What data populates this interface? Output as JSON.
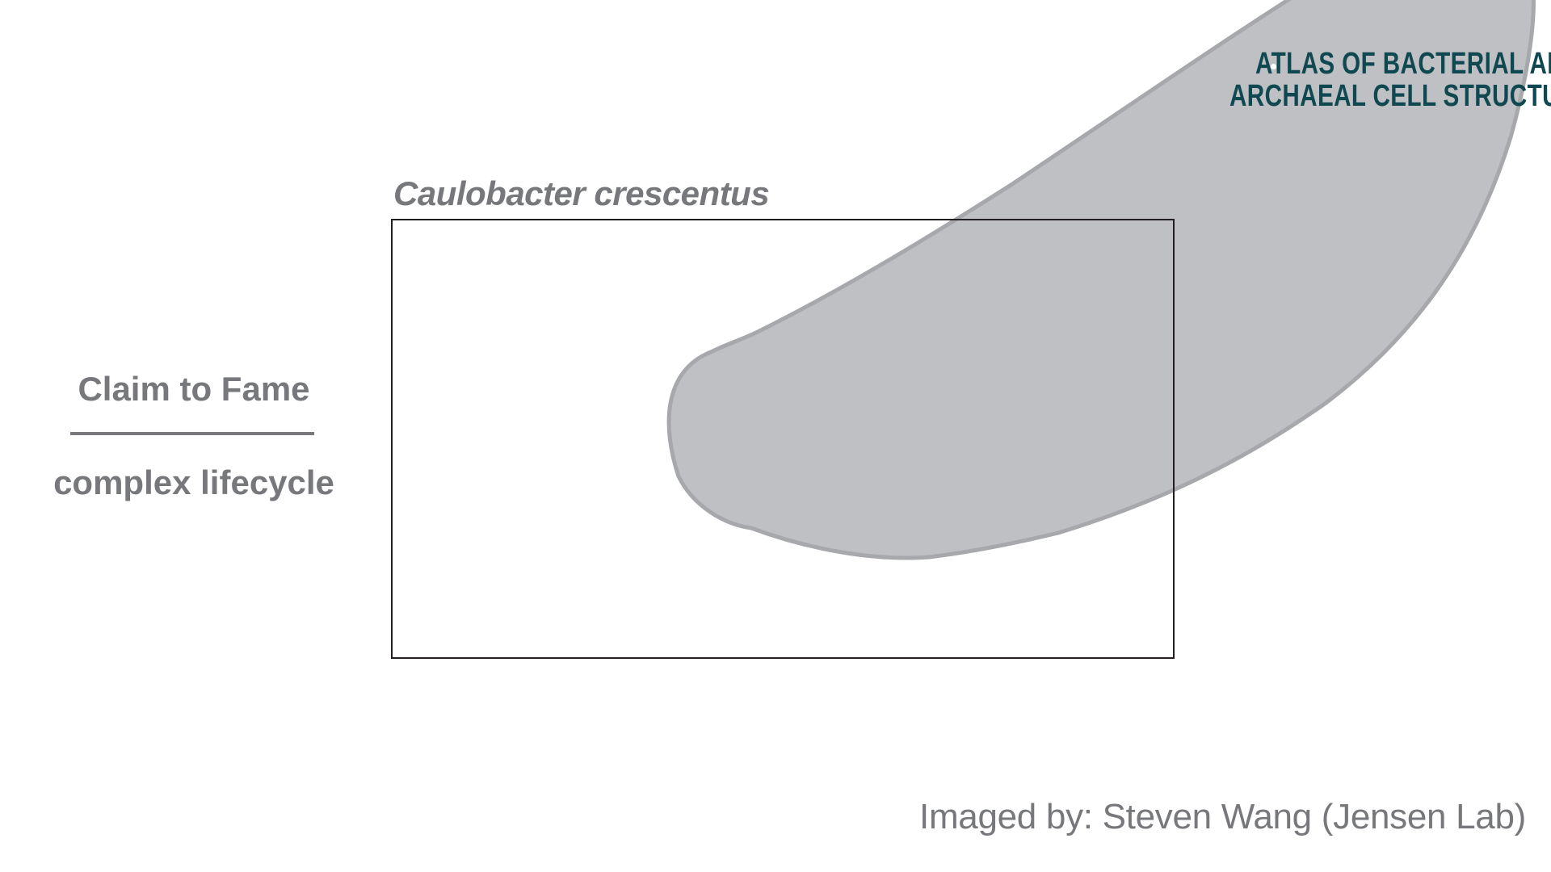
{
  "logo": {
    "line1": "ATLAS OF BACTERIAL AND",
    "line2": "ARCHAEAL CELL STRUCTURE"
  },
  "species_title": "Caulobacter crescentus",
  "claim": {
    "heading": "Claim to Fame",
    "value": "complex lifecycle"
  },
  "credit": "Imaged by: Steven Wang (Jensen Lab)",
  "colors": {
    "text_gray": "#77787b",
    "cell_fill": "#bfc0c4",
    "cell_stroke": "#a7a8ab",
    "logo_teal": "#0f4850",
    "frame_border": "#231f20"
  }
}
